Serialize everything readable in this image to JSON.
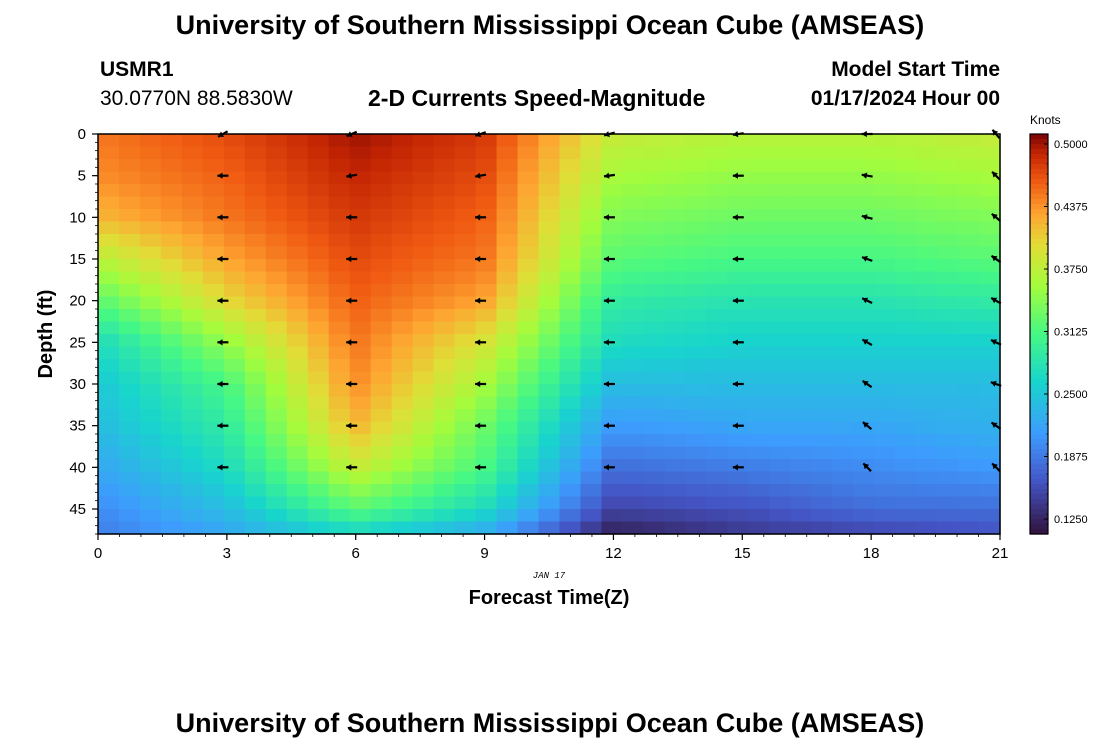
{
  "header": {
    "title": "University of Southern Mississippi Ocean Cube (AMSEAS)",
    "station_id": "USMR1",
    "coords": "30.0770N  88.5830W",
    "chart_title": "2-D Currents Speed-Magnitude",
    "model_label": "Model Start Time",
    "model_time": "01/17/2024 Hour 00",
    "footer_title": "University of Southern Mississippi Ocean Cube (AMSEAS)"
  },
  "chart_data": {
    "type": "heatmap",
    "title": "2-D Currents Speed-Magnitude",
    "xlabel": "Forecast Time(Z)",
    "ylabel": "Depth (ft)",
    "date_label": "JAN 17",
    "xlim": [
      0,
      21
    ],
    "ylim": [
      48,
      0
    ],
    "x_ticks": [
      0,
      3,
      6,
      9,
      12,
      15,
      18,
      21
    ],
    "y_ticks": [
      0,
      5,
      10,
      15,
      20,
      25,
      30,
      35,
      40,
      45
    ],
    "colorbar": {
      "label": "Knots",
      "min": 0.11,
      "max": 0.51,
      "ticks": [
        "0.5000",
        "0.4375",
        "0.3750",
        "0.3125",
        "0.2500",
        "0.1875",
        "0.1250"
      ]
    },
    "speed_grid": {
      "times": [
        0,
        3,
        6,
        9,
        12,
        15,
        18,
        21
      ],
      "depths": [
        0,
        5,
        10,
        15,
        20,
        25,
        30,
        35,
        40,
        45,
        48
      ],
      "values_knots": [
        [
          0.45,
          0.47,
          0.5,
          0.48,
          0.38,
          0.37,
          0.37,
          0.38
        ],
        [
          0.44,
          0.46,
          0.49,
          0.47,
          0.36,
          0.35,
          0.35,
          0.36
        ],
        [
          0.42,
          0.45,
          0.48,
          0.46,
          0.34,
          0.33,
          0.33,
          0.34
        ],
        [
          0.37,
          0.43,
          0.47,
          0.45,
          0.32,
          0.31,
          0.31,
          0.32
        ],
        [
          0.32,
          0.4,
          0.46,
          0.43,
          0.29,
          0.28,
          0.28,
          0.29
        ],
        [
          0.27,
          0.35,
          0.45,
          0.39,
          0.27,
          0.26,
          0.26,
          0.26
        ],
        [
          0.25,
          0.31,
          0.44,
          0.36,
          0.24,
          0.24,
          0.24,
          0.24
        ],
        [
          0.24,
          0.29,
          0.42,
          0.33,
          0.21,
          0.22,
          0.22,
          0.23
        ],
        [
          0.22,
          0.27,
          0.38,
          0.31,
          0.18,
          0.19,
          0.2,
          0.21
        ],
        [
          0.2,
          0.24,
          0.32,
          0.27,
          0.15,
          0.16,
          0.18,
          0.18
        ],
        [
          0.19,
          0.22,
          0.26,
          0.22,
          0.12,
          0.14,
          0.15,
          0.16
        ]
      ]
    },
    "vectors": {
      "times": [
        3,
        6,
        9,
        12,
        15,
        18,
        21
      ],
      "depths": [
        0,
        5,
        10,
        15,
        20,
        25,
        30,
        35,
        40
      ],
      "direction_deg_from_east": [
        [
          210,
          180,
          180,
          180,
          180,
          180,
          180,
          180,
          180
        ],
        [
          205,
          190,
          180,
          180,
          180,
          180,
          180,
          180,
          180
        ],
        [
          200,
          190,
          180,
          180,
          180,
          180,
          180,
          180,
          180
        ],
        [
          195,
          188,
          180,
          180,
          180,
          180,
          180,
          180,
          180
        ],
        [
          188,
          180,
          180,
          180,
          180,
          180,
          180,
          180,
          180
        ],
        [
          180,
          170,
          165,
          160,
          155,
          150,
          145,
          140,
          135
        ],
        [
          130,
          135,
          140,
          145,
          150,
          155,
          160,
          145,
          135
        ]
      ]
    }
  }
}
